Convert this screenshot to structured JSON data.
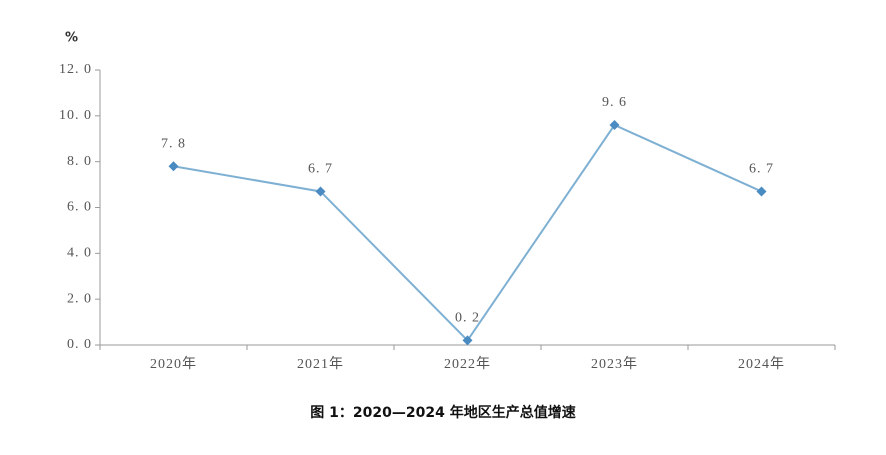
{
  "chart_data": {
    "type": "line",
    "title": "图 1：2020—2024 年地区生产总值增速",
    "y_label": "%",
    "categories": [
      "2020年",
      "2021年",
      "2022年",
      "2023年",
      "2024年"
    ],
    "series": [
      {
        "name": "地区生产总值增速",
        "color": "#7eb0d3",
        "marker_color": "#4a8bc2",
        "values": [
          7.8,
          6.7,
          0.2,
          9.6,
          6.7
        ],
        "value_labels": [
          "7. 8",
          "6. 7",
          "0. 2",
          "9. 6",
          "6. 7"
        ]
      }
    ],
    "ylim": [
      0,
      12
    ],
    "yticks": [
      {
        "value": 0,
        "label": "0. 0"
      },
      {
        "value": 2,
        "label": "2. 0"
      },
      {
        "value": 4,
        "label": "4. 0"
      },
      {
        "value": 6,
        "label": "6. 0"
      },
      {
        "value": 8,
        "label": "8. 0"
      },
      {
        "value": 10,
        "label": "10. 0"
      },
      {
        "value": 12,
        "label": "12. 0"
      }
    ],
    "grid": false
  }
}
